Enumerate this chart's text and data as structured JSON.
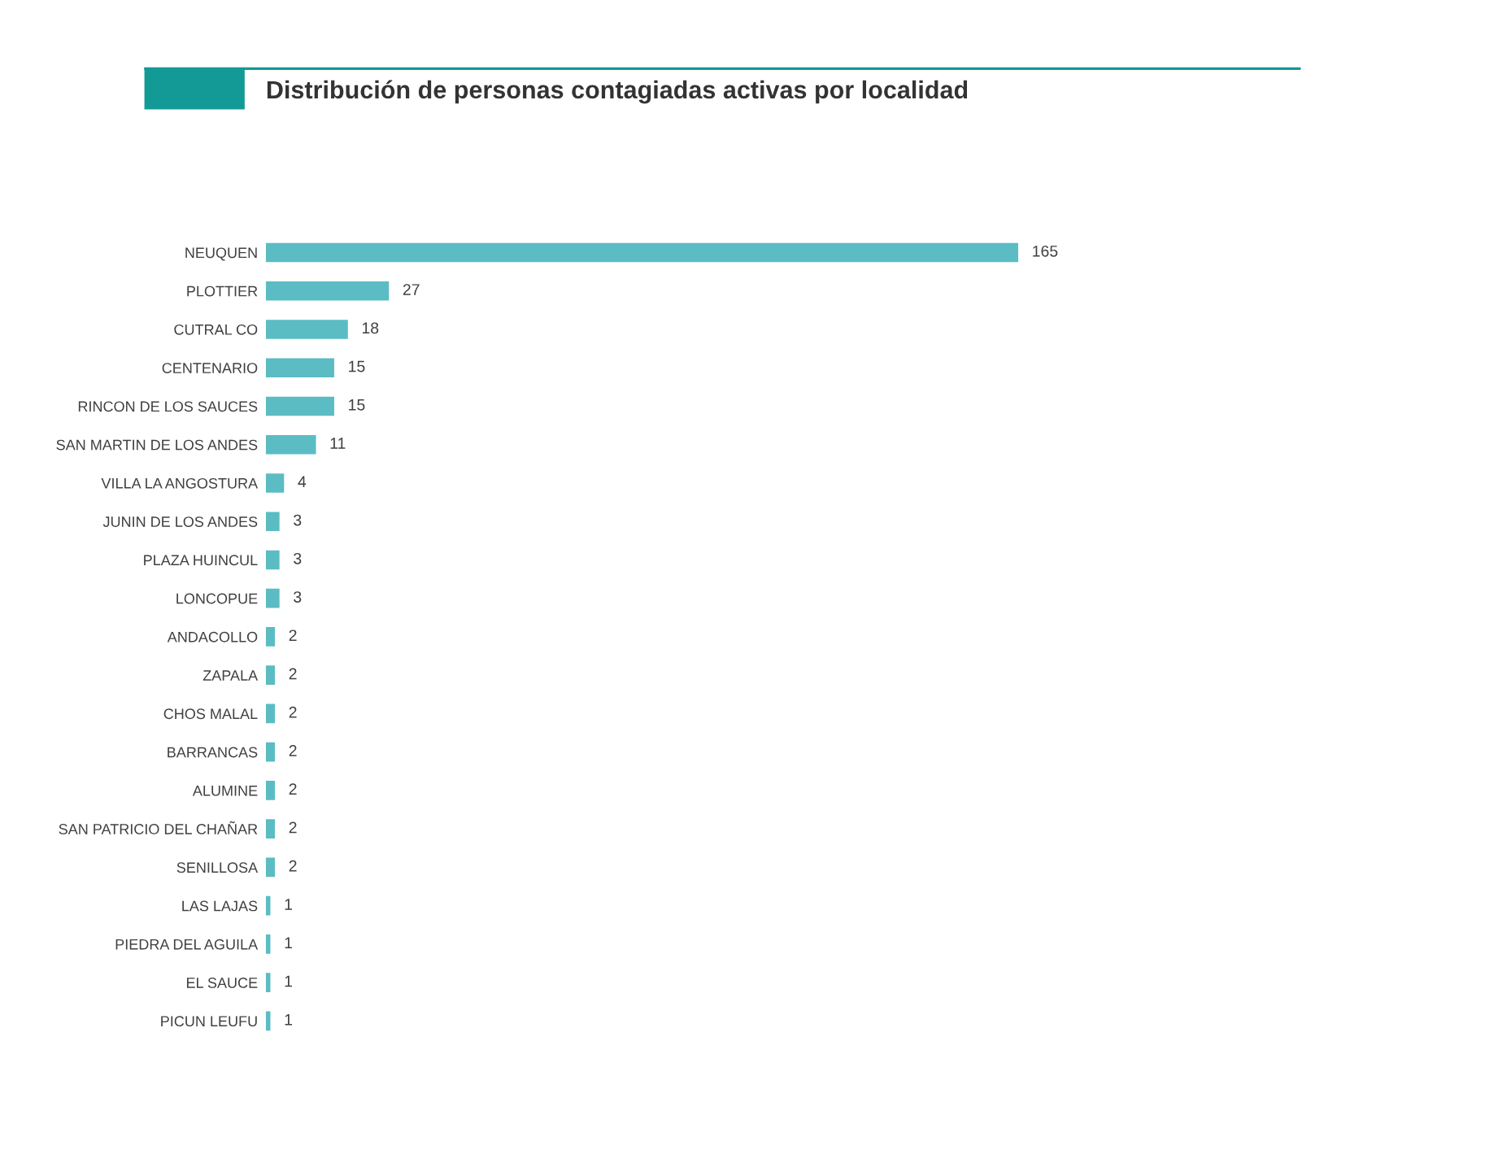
{
  "chart_data": {
    "type": "bar",
    "orientation": "horizontal",
    "title": "Distribución de personas contagiadas activas por localidad",
    "categories": [
      "NEUQUEN",
      "PLOTTIER",
      "CUTRAL CO",
      "CENTENARIO",
      "RINCON DE LOS SAUCES",
      "SAN MARTIN DE LOS ANDES",
      "VILLA LA ANGOSTURA",
      "JUNIN DE LOS ANDES",
      "PLAZA HUINCUL",
      "LONCOPUE",
      "ANDACOLLO",
      "ZAPALA",
      "CHOS MALAL",
      "BARRANCAS",
      "ALUMINE",
      "SAN PATRICIO DEL CHAÑAR",
      "SENILLOSA",
      "LAS LAJAS",
      "PIEDRA DEL AGUILA",
      "EL SAUCE",
      "PICUN LEUFU"
    ],
    "values": [
      165,
      27,
      18,
      15,
      15,
      11,
      4,
      3,
      3,
      3,
      2,
      2,
      2,
      2,
      2,
      2,
      2,
      1,
      1,
      1,
      1
    ],
    "color": "#5bbcc4",
    "data_labels": true
  }
}
